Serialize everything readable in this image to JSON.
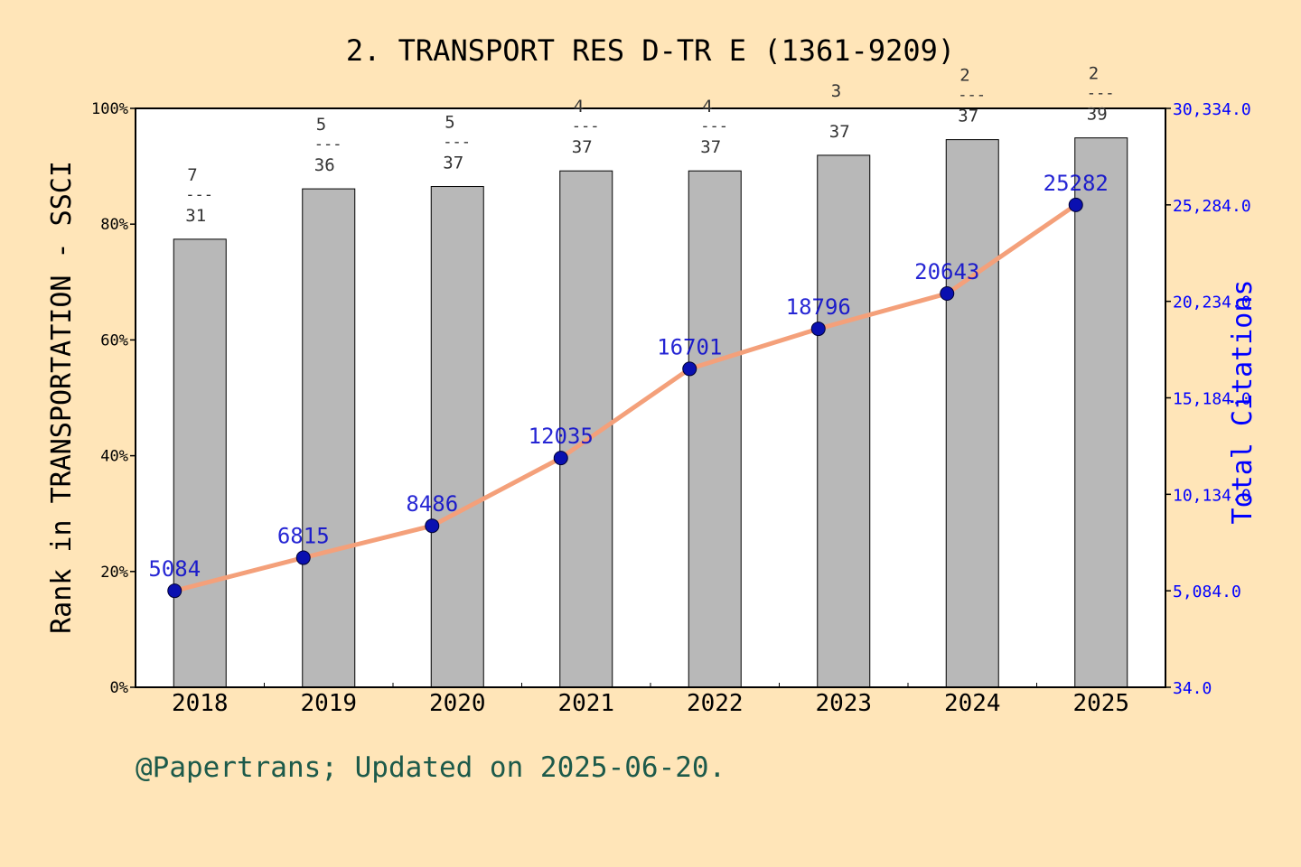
{
  "footer": "@Papertrans; Updated on 2025-06-20.",
  "chart_data": {
    "type": "bar",
    "title": "2. TRANSPORT RES D-TR E (1361-9209)",
    "categories": [
      "2018",
      "2019",
      "2020",
      "2021",
      "2022",
      "2023",
      "2024",
      "2025"
    ],
    "ylabel_left": "Rank in TRANSPORTATION - SSCI",
    "ylabel_right": "Total Citations",
    "ylim_left": [
      0,
      100
    ],
    "left_ticks": [
      "0%",
      "20%",
      "40%",
      "60%",
      "80%",
      "100%"
    ],
    "ylim_right": [
      34,
      30334
    ],
    "right_ticks": [
      "34.0",
      "5,084.0",
      "10,134.0",
      "15,184.0",
      "20,234.0",
      "25,284.0",
      "30,334.0"
    ],
    "series": [
      {
        "type": "bar",
        "values": [
          77.4,
          86.1,
          86.5,
          89.2,
          89.2,
          91.9,
          94.6,
          94.9
        ],
        "labels": [
          {
            "rank": "7",
            "sep": "---",
            "total": "31"
          },
          {
            "rank": "5",
            "sep": "---",
            "total": "36"
          },
          {
            "rank": "5",
            "sep": "---",
            "total": "37"
          },
          {
            "rank": "4",
            "sep": "---",
            "total": "37"
          },
          {
            "rank": "4",
            "sep": "---",
            "total": "37"
          },
          {
            "rank": "3",
            "sep": "",
            "total": "37"
          },
          {
            "rank": "2",
            "sep": "---",
            "total": "37"
          },
          {
            "rank": "2",
            "sep": "---",
            "total": "39"
          }
        ],
        "color": "#b8b8b8"
      },
      {
        "type": "line",
        "axis": "right",
        "values": [
          5084,
          6815,
          8486,
          12035,
          16701,
          18796,
          20643,
          25282
        ],
        "labels": [
          "5084",
          "6815",
          "8486",
          "12035",
          "16701",
          "18796",
          "20643",
          "25282"
        ],
        "color": "#f4a07a",
        "marker_color": "#0a10b0"
      }
    ],
    "grid": false,
    "colors": {
      "left_axis_text": "#000000",
      "right_axis_text": "#0000ff",
      "bar_label_text": "#333333",
      "point_label_text": "#0000cc"
    }
  }
}
